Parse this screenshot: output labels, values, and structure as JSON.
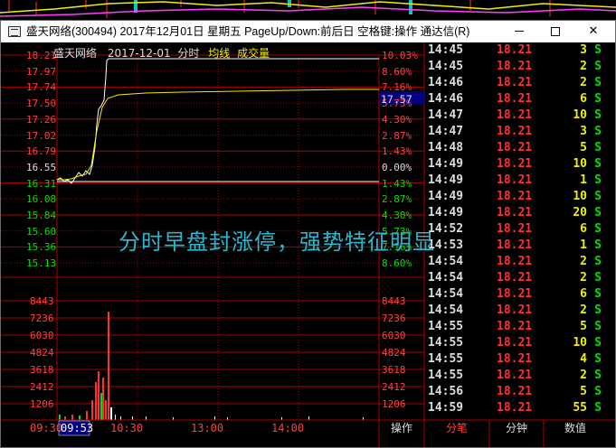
{
  "window": {
    "title": "盛天网络(300494) 2017年12月01日 星期五 PageUp/Down:前后日 空格键:操作 通达信(R)",
    "min": "—",
    "max": "☐",
    "close": "✕"
  },
  "chart_header": {
    "name": "盛天网络",
    "date": "2017-12-01",
    "mode": "分时",
    "avg_label": "均线",
    "vol_label": "成交量"
  },
  "price_labels_left": [
    "18.21",
    "17.97",
    "17.74",
    "17.50",
    "17.26",
    "17.02",
    "16.79",
    "16.55",
    "16.31",
    "16.08",
    "15.84",
    "15.60",
    "15.36",
    "15.13"
  ],
  "pct_labels_right": [
    "10.03%",
    "8.60%",
    "7.16%",
    "5.73%",
    "4.30%",
    "2.87%",
    "1.43%",
    "0.00%",
    "1.43%",
    "2.87%",
    "4.30%",
    "5.73%",
    "7.16%",
    "8.60%"
  ],
  "current_price_tag": "17.57",
  "volume_labels_left": [
    "8443",
    "7236",
    "6030",
    "4824",
    "3618",
    "2412",
    "1206"
  ],
  "volume_labels_right": [
    "8443",
    "7236",
    "6030",
    "4824",
    "3618",
    "2412",
    "1206"
  ],
  "time_axis": {
    "start": "09:30",
    "cursor": "09:53",
    "t1": "10:30",
    "t2": "13:00",
    "t3": "14:00"
  },
  "bottom_tabs": {
    "operate": "操作",
    "ticks": "分笔",
    "minute": "分钟",
    "values": "数值"
  },
  "overlay_text": "分时早盘封涨停，强势特征明显",
  "ticks": [
    {
      "time": "14:45",
      "price": "18.21",
      "vol": "3",
      "side": "S"
    },
    {
      "time": "14:45",
      "price": "18.21",
      "vol": "2",
      "side": "S"
    },
    {
      "time": "14:46",
      "price": "18.21",
      "vol": "2",
      "side": "S"
    },
    {
      "time": "14:46",
      "price": "18.21",
      "vol": "6",
      "side": "S"
    },
    {
      "time": "14:47",
      "price": "18.21",
      "vol": "10",
      "side": "S"
    },
    {
      "time": "14:47",
      "price": "18.21",
      "vol": "3",
      "side": "S"
    },
    {
      "time": "14:48",
      "price": "18.21",
      "vol": "5",
      "side": "S"
    },
    {
      "time": "14:49",
      "price": "18.21",
      "vol": "10",
      "side": "S"
    },
    {
      "time": "14:49",
      "price": "18.21",
      "vol": "1",
      "side": "S"
    },
    {
      "time": "14:49",
      "price": "18.21",
      "vol": "10",
      "side": "S"
    },
    {
      "time": "14:49",
      "price": "18.21",
      "vol": "20",
      "side": "S"
    },
    {
      "time": "14:52",
      "price": "18.21",
      "vol": "6",
      "side": "S"
    },
    {
      "time": "14:53",
      "price": "18.21",
      "vol": "1",
      "side": "S"
    },
    {
      "time": "14:54",
      "price": "18.21",
      "vol": "2",
      "side": "S"
    },
    {
      "time": "14:54",
      "price": "18.21",
      "vol": "2",
      "side": "S"
    },
    {
      "time": "14:54",
      "price": "18.21",
      "vol": "6",
      "side": "S"
    },
    {
      "time": "14:54",
      "price": "18.21",
      "vol": "2",
      "side": "S"
    },
    {
      "time": "14:55",
      "price": "18.21",
      "vol": "5",
      "side": "S"
    },
    {
      "time": "14:55",
      "price": "18.21",
      "vol": "10",
      "side": "S"
    },
    {
      "time": "14:55",
      "price": "18.21",
      "vol": "4",
      "side": "S"
    },
    {
      "time": "14:55",
      "price": "18.21",
      "vol": "2",
      "side": "S"
    },
    {
      "time": "14:56",
      "price": "18.21",
      "vol": "5",
      "side": "S"
    },
    {
      "time": "14:59",
      "price": "18.21",
      "vol": "55",
      "side": "S"
    }
  ],
  "colors": {
    "up": "#ff3030",
    "down": "#00e000",
    "grid": "#b00000",
    "price_line": "#ffffff",
    "avg_line": "#f0f000",
    "overlay": "#27b8d0"
  }
}
